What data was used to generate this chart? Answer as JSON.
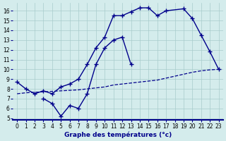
{
  "bg_color": "#d4ecec",
  "line_color": "#00008b",
  "grid_color": "#a8cccc",
  "xlabel": "Graphe des températures (°c)",
  "xlim": [
    -0.5,
    23.5
  ],
  "ylim": [
    4.8,
    16.8
  ],
  "yticks": [
    5,
    6,
    7,
    8,
    9,
    10,
    11,
    12,
    13,
    14,
    15,
    16
  ],
  "xticks": [
    0,
    1,
    2,
    3,
    4,
    5,
    6,
    7,
    8,
    9,
    10,
    11,
    12,
    13,
    14,
    15,
    16,
    17,
    18,
    19,
    20,
    21,
    22,
    23
  ],
  "line1_x": [
    0,
    1,
    2,
    3,
    4,
    5,
    6,
    7,
    8,
    9,
    10,
    11,
    12,
    13,
    14,
    15,
    16,
    17,
    19,
    20,
    21,
    22,
    23
  ],
  "line1_y": [
    8.7,
    8.0,
    7.5,
    7.8,
    7.5,
    8.2,
    8.5,
    9.0,
    10.5,
    12.2,
    13.3,
    15.5,
    15.5,
    15.9,
    16.3,
    16.3,
    15.5,
    16.0,
    16.2,
    15.2,
    13.5,
    11.8,
    10.0
  ],
  "line2_x": [
    3,
    4,
    5,
    6,
    7,
    8,
    9,
    10,
    11,
    12,
    13
  ],
  "line2_y": [
    7.0,
    6.5,
    5.2,
    6.3,
    6.0,
    7.5,
    10.5,
    12.2,
    13.0,
    13.3,
    10.5
  ],
  "line3_x": [
    0,
    1,
    2,
    3,
    4,
    5,
    6,
    7,
    8,
    9,
    10,
    11,
    12,
    13,
    14,
    15,
    16,
    17,
    18,
    19,
    20,
    21,
    22,
    23
  ],
  "line3_y": [
    7.5,
    7.6,
    7.65,
    7.7,
    7.75,
    7.8,
    7.85,
    7.9,
    8.0,
    8.1,
    8.2,
    8.4,
    8.5,
    8.6,
    8.7,
    8.8,
    8.9,
    9.1,
    9.3,
    9.5,
    9.7,
    9.85,
    9.95,
    10.0
  ]
}
